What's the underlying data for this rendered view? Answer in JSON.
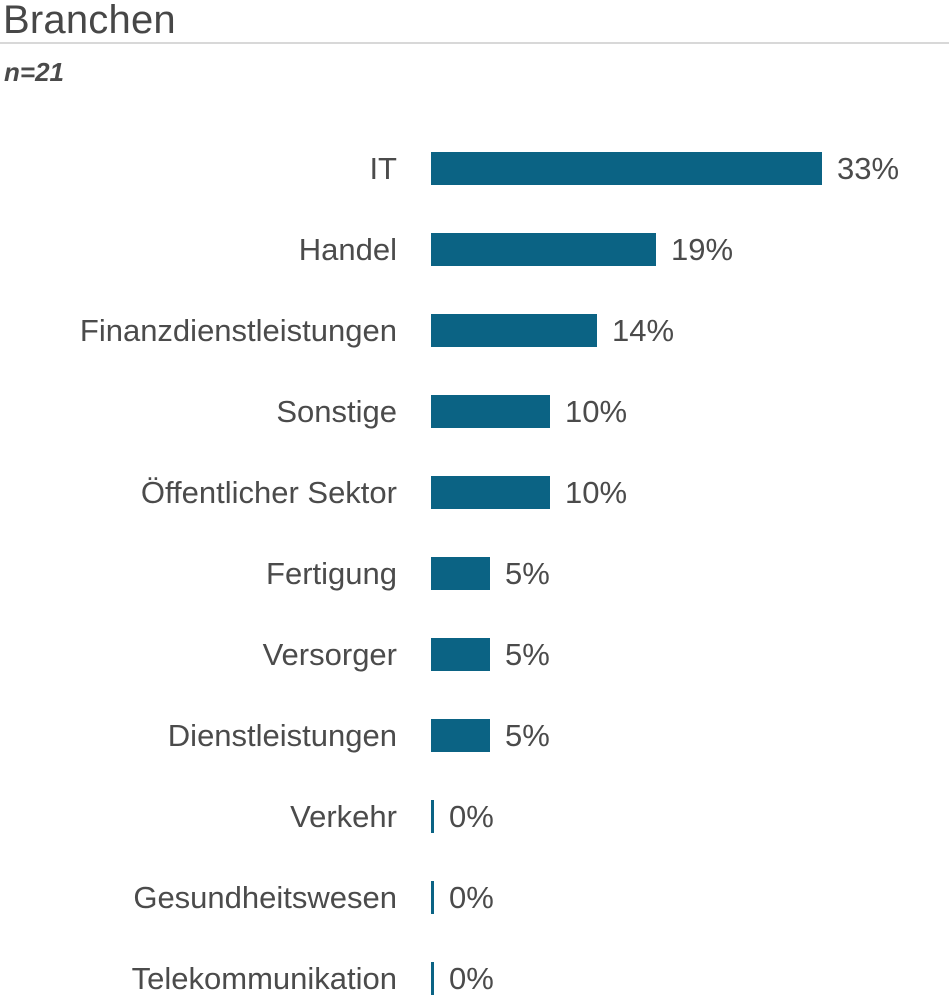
{
  "header": {
    "title": "Branchen",
    "subtitle": "n=21"
  },
  "chart_data": {
    "type": "bar",
    "orientation": "horizontal",
    "title": "Branchen",
    "subtitle": "n=21",
    "xlabel": "",
    "ylabel": "",
    "xlim": [
      0,
      35
    ],
    "grid": false,
    "legend": false,
    "categories": [
      "IT",
      "Handel",
      "Finanzdienstleistungen",
      "Sonstige",
      "Öffentlicher Sektor",
      "Fertigung",
      "Versorger",
      "Dienstleistungen",
      "Verkehr",
      "Gesundheitswesen",
      "Telekommunikation"
    ],
    "values": [
      33,
      19,
      14,
      10,
      10,
      5,
      5,
      5,
      0,
      0,
      0
    ],
    "value_labels": [
      "33%",
      "19%",
      "14%",
      "10%",
      "10%",
      "5%",
      "5%",
      "5%",
      "0%",
      "0%",
      "0%"
    ],
    "bar_color": "#0b6384",
    "text_color": "#4b4b4b",
    "title_color": "#474747",
    "divider_color": "#d8d8d8"
  }
}
